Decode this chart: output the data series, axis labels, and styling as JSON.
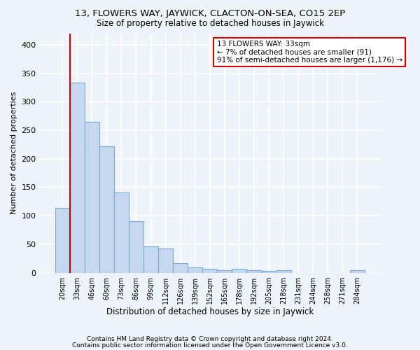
{
  "title1": "13, FLOWERS WAY, JAYWICK, CLACTON-ON-SEA, CO15 2EP",
  "title2": "Size of property relative to detached houses in Jaywick",
  "xlabel": "Distribution of detached houses by size in Jaywick",
  "ylabel": "Number of detached properties",
  "categories": [
    "20sqm",
    "33sqm",
    "46sqm",
    "60sqm",
    "73sqm",
    "86sqm",
    "99sqm",
    "112sqm",
    "126sqm",
    "139sqm",
    "152sqm",
    "165sqm",
    "178sqm",
    "192sqm",
    "205sqm",
    "218sqm",
    "231sqm",
    "244sqm",
    "258sqm",
    "271sqm",
    "284sqm"
  ],
  "values": [
    114,
    334,
    265,
    222,
    141,
    91,
    46,
    43,
    17,
    10,
    7,
    5,
    7,
    5,
    3,
    4,
    0,
    0,
    0,
    0,
    5
  ],
  "bar_color": "#c5d8ef",
  "bar_edge_color": "#7aaad0",
  "vline_color": "#cc0000",
  "annotation_line1": "13 FLOWERS WAY: 33sqm",
  "annotation_line2": "← 7% of detached houses are smaller (91)",
  "annotation_line3": "91% of semi-detached houses are larger (1,176) →",
  "annotation_box_color": "#ffffff",
  "annotation_box_edge_color": "#cc0000",
  "ylim": [
    0,
    420
  ],
  "yticks": [
    0,
    50,
    100,
    150,
    200,
    250,
    300,
    350,
    400
  ],
  "footer1": "Contains HM Land Registry data © Crown copyright and database right 2024.",
  "footer2": "Contains public sector information licensed under the Open Government Licence v3.0.",
  "bg_color": "#eef2f9",
  "grid_color": "#ffffff"
}
